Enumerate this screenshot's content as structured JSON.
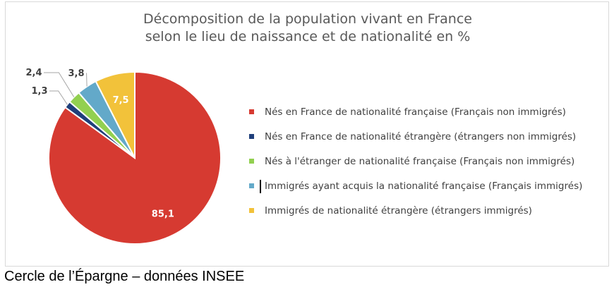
{
  "chart_data": {
    "type": "pie",
    "title": [
      "Décomposition de la population vivant en France",
      "selon le lieu de naissance et de nationalité en %"
    ],
    "slices": [
      {
        "label": "Nés en France de nationalité française (Français non immigrés)",
        "value": 85.1,
        "display": "85,1",
        "color": "#d63a31"
      },
      {
        "label": "Nés en France de nationalité étrangère (étrangers non immigrés)",
        "value": 1.3,
        "display": "1,3",
        "color": "#1f3f7a"
      },
      {
        "label": "Nés à l'étranger de nationalité française (Français non immigrés)",
        "value": 2.4,
        "display": "2,4",
        "color": "#92d050"
      },
      {
        "label": "Immigrés ayant acquis la nationalité française (Français immigrés)",
        "value": 3.8,
        "display": "3,8",
        "color": "#63a9c9"
      },
      {
        "label": "Immigrés de nationalité étrangère (étrangers immigrés)",
        "value": 7.5,
        "display": "7,5",
        "color": "#f2c23a"
      }
    ],
    "legend_position": "right"
  },
  "source": "Cercle de l’Épargne – données INSEE"
}
